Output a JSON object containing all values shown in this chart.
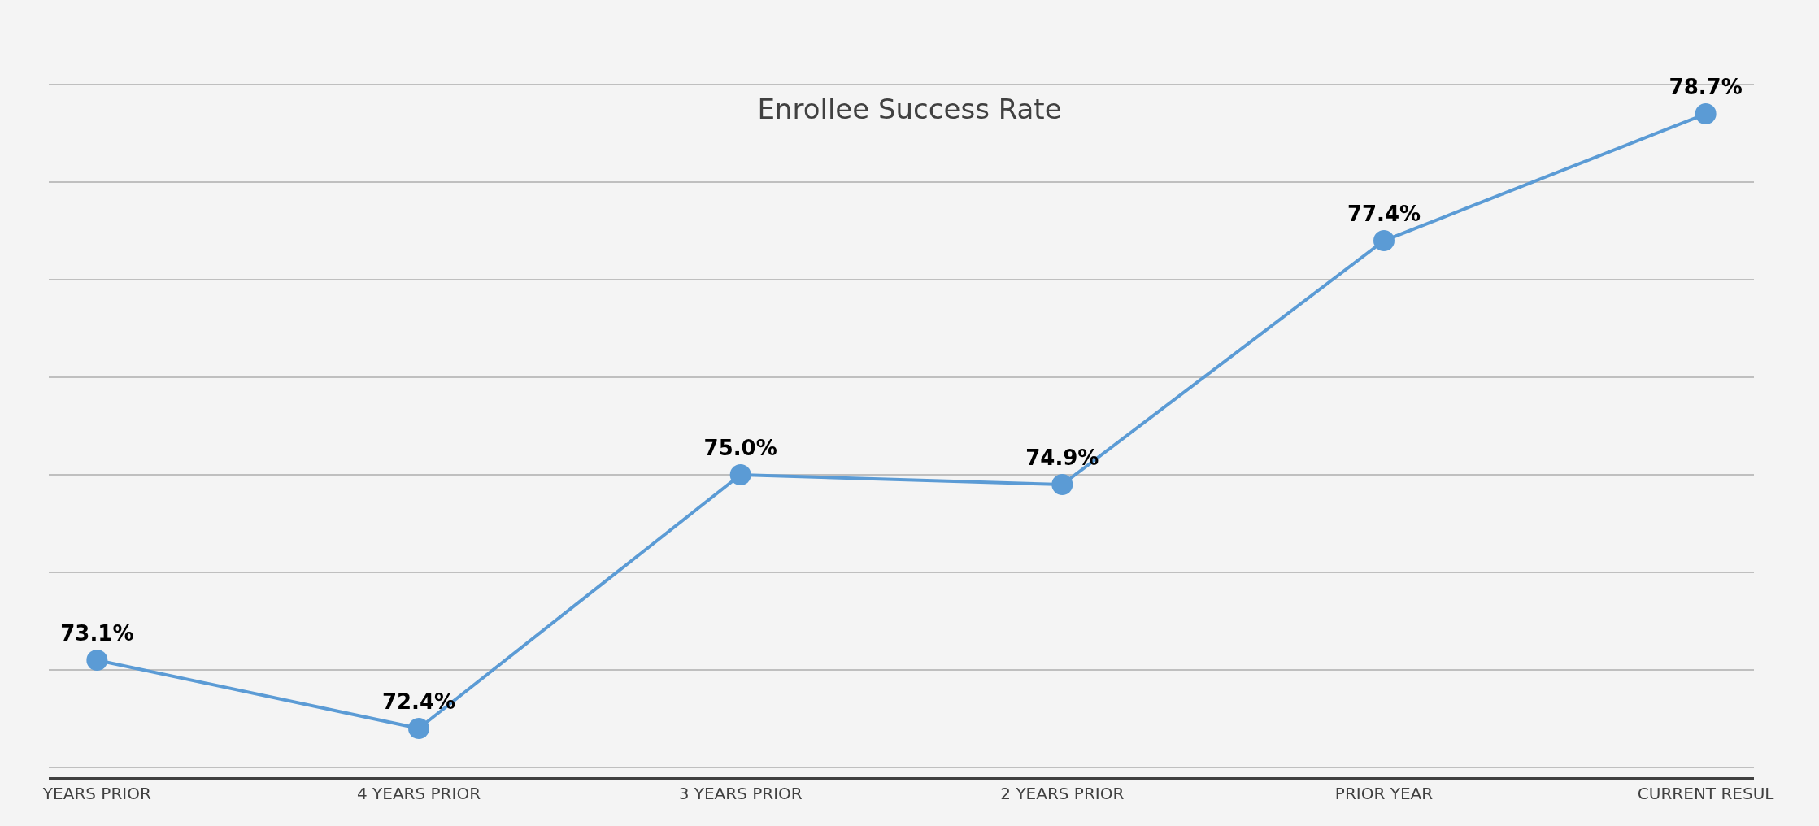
{
  "chart_data": {
    "type": "line",
    "title": "Enrollee Success Rate",
    "categories": [
      "YEARS PRIOR",
      "4 YEARS PRIOR",
      "3 YEARS PRIOR",
      "2 YEARS PRIOR",
      "PRIOR YEAR",
      "CURRENT RESUL"
    ],
    "series": [
      {
        "color": "#5b9bd5",
        "values": [
          73.1,
          72.4,
          75.0,
          74.9,
          77.4,
          78.7
        ],
        "value_labels": [
          "73.1%",
          "72.4%",
          "75.0%",
          "74.9%",
          "77.4%",
          "78.7%"
        ]
      }
    ],
    "tick_labels": "x",
    "grid": "y",
    "marker": "circle",
    "line_style": "solid",
    "legend": false
  }
}
